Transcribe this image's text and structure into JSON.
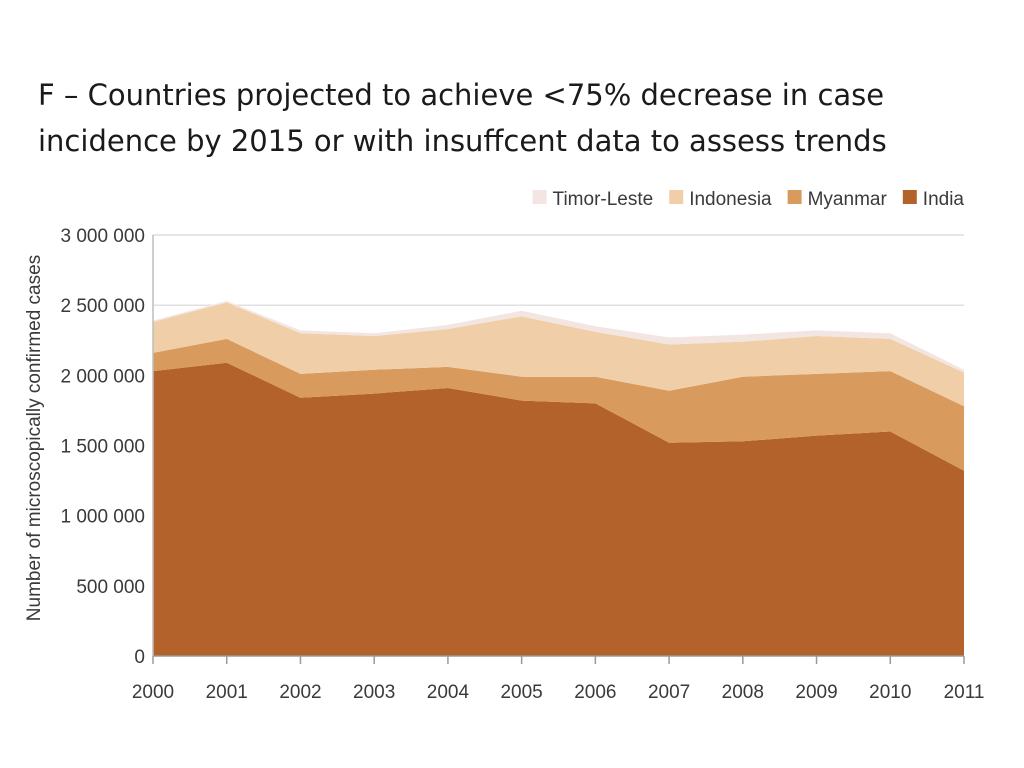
{
  "chart_data": {
    "type": "area",
    "stacked": true,
    "title": "F – Countries projected to achieve <75% decrease in case incidence by 2015 or with insuffcent data to assess trends",
    "xlabel": "",
    "ylabel": "Number of microscopically confirmed cases",
    "ylim": [
      0,
      3000000
    ],
    "yticks": [
      0,
      500000,
      1000000,
      1500000,
      2000000,
      2500000,
      3000000
    ],
    "ytick_labels": [
      "0",
      "500 000",
      "1 000 000",
      "1 500 000",
      "2 000 000",
      "2 500 000",
      "3 000 000"
    ],
    "x": [
      "2000",
      "2001",
      "2002",
      "2003",
      "2004",
      "2005",
      "2006",
      "2007",
      "2008",
      "2009",
      "2010",
      "2011"
    ],
    "grid": "horizontal",
    "legend_position": "top-right",
    "legend": [
      {
        "name": "Timor-Leste",
        "color": "#f3e5e1"
      },
      {
        "name": "Indonesia",
        "color": "#f0cfa8"
      },
      {
        "name": "Myanmar",
        "color": "#d99a5e"
      },
      {
        "name": "India",
        "color": "#b3622b"
      }
    ],
    "series": [
      {
        "name": "India",
        "color": "#b3622b",
        "values": [
          2030000,
          2090000,
          1840000,
          1870000,
          1910000,
          1820000,
          1800000,
          1520000,
          1530000,
          1570000,
          1600000,
          1320000
        ]
      },
      {
        "name": "Myanmar",
        "color": "#d99a5e",
        "values": [
          130000,
          170000,
          170000,
          170000,
          150000,
          170000,
          190000,
          370000,
          460000,
          440000,
          430000,
          460000
        ]
      },
      {
        "name": "Indonesia",
        "color": "#f0cfa8",
        "values": [
          220000,
          260000,
          290000,
          240000,
          270000,
          430000,
          320000,
          330000,
          250000,
          270000,
          230000,
          240000
        ]
      },
      {
        "name": "Timor-Leste",
        "color": "#f3e5e1",
        "values": [
          10000,
          10000,
          20000,
          20000,
          30000,
          40000,
          40000,
          50000,
          50000,
          40000,
          40000,
          20000
        ]
      }
    ]
  }
}
